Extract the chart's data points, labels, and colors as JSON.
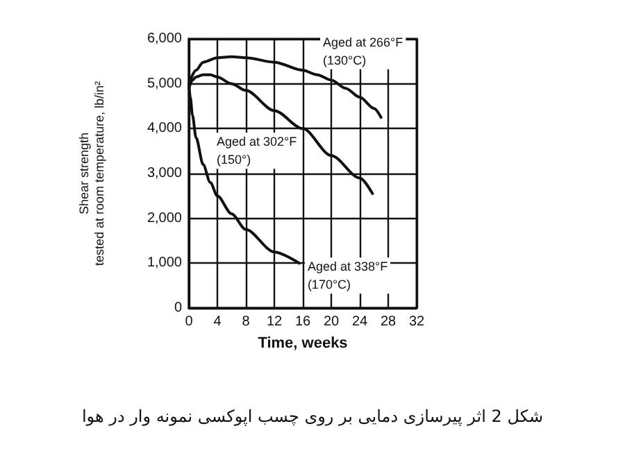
{
  "chart_data": {
    "type": "line",
    "xlabel": "Time, weeks",
    "ylabel": "Shear strength\ntested at room temperature, lb/in²",
    "series": [
      {
        "color": "#111111",
        "x": [
          0,
          1,
          2,
          4,
          6,
          8,
          12,
          16,
          18,
          20,
          22,
          24,
          26,
          27
        ],
        "values": [
          5000,
          5300,
          5480,
          5580,
          5600,
          5580,
          5480,
          5300,
          5200,
          5080,
          4900,
          4700,
          4450,
          4250
        ]
      },
      {
        "color": "#111111",
        "x": [
          0,
          0.5,
          1,
          2,
          3,
          4,
          6,
          8,
          12,
          16,
          20,
          24,
          25.8
        ],
        "values": [
          4900,
          5080,
          5150,
          5200,
          5200,
          5150,
          5000,
          4850,
          4400,
          4000,
          3400,
          2900,
          2550
        ]
      },
      {
        "color": "#111111",
        "x": [
          0,
          0.2,
          0.5,
          1,
          2,
          3,
          4,
          6,
          8,
          12,
          15.5
        ],
        "values": [
          5000,
          4700,
          4300,
          3800,
          3200,
          2800,
          2500,
          2100,
          1750,
          1250,
          1000
        ]
      }
    ],
    "xlim": [
      0,
      32
    ],
    "xticks": [
      0,
      4,
      8,
      12,
      16,
      20,
      24,
      28,
      32
    ],
    "ylim": [
      0,
      6000
    ],
    "yticks": [
      0,
      {
        "value": 1000,
        "label": "1,000"
      },
      {
        "value": 2000,
        "label": "2,000"
      },
      {
        "value": 3000,
        "label": "3,000"
      },
      {
        "value": 4000,
        "label": "4,000"
      },
      {
        "value": 5000,
        "label": "5,000"
      },
      {
        "value": 6000,
        "label": "6,000"
      }
    ],
    "grid": true,
    "marker": "none",
    "line_style": "solid",
    "annotations": [
      {
        "text": "Aged at 266°F\n(130°C)",
        "x": 20,
        "y": 5200
      },
      {
        "text": "Aged at 302°F\n(150°)",
        "x": 16,
        "y": 4000
      },
      {
        "text": "Aged at 338°F\n(170°C)",
        "x": 15.5,
        "y": 1000
      },
      "شکل 2 اثر پیرسازی دمایی بر روی چسب اپوکسی نمونه وار در هوا"
    ]
  }
}
